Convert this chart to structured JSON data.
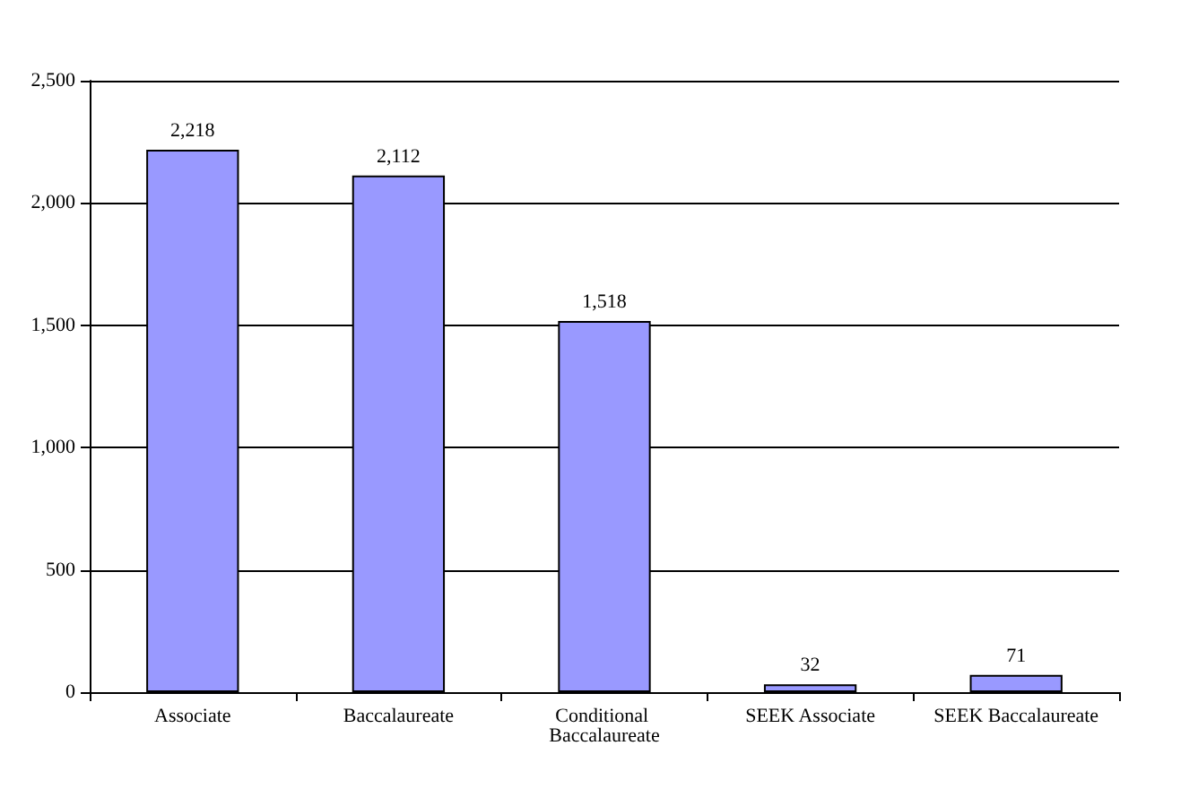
{
  "chart_data": {
    "type": "bar",
    "categories": [
      "Associate",
      "Baccalaureate",
      "Conditional Baccalaureate",
      "SEEK Associate",
      "SEEK Baccalaureate"
    ],
    "values": [
      2218,
      2112,
      1518,
      32,
      71
    ],
    "color": "#9999ff",
    "value_labels": [
      "2,218",
      "2,112",
      "1,518",
      "32",
      "71"
    ],
    "ylim": [
      0,
      2500
    ],
    "yticks": [
      {
        "value": 0,
        "label": "0"
      },
      {
        "value": 500,
        "label": "500"
      },
      {
        "value": 1000,
        "label": "1,000"
      },
      {
        "value": 1500,
        "label": "1,500"
      },
      {
        "value": 2000,
        "label": "2,000"
      },
      {
        "value": 2500,
        "label": "2,500"
      }
    ],
    "grid": "y"
  }
}
